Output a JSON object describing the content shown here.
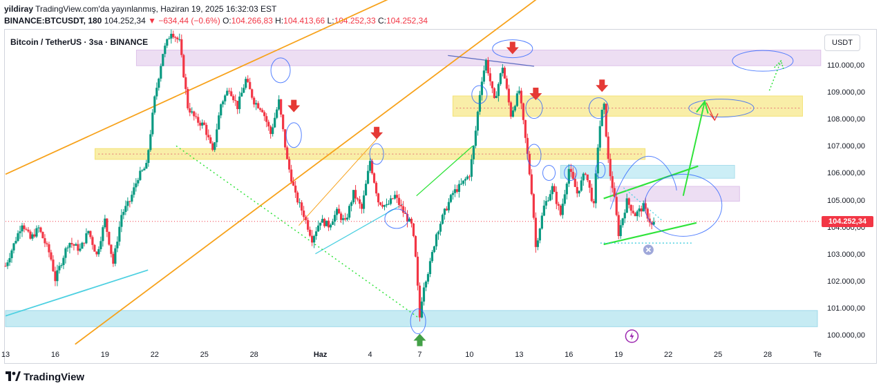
{
  "header": {
    "author": "yildiray",
    "published": "TradingView.com'da yayınlanmış, Haziran 19, 2025 16:32:03 EST",
    "symbol_line": "BINANCE:BTCUSDT, 180",
    "last": "104.252,34",
    "change": "▼ −634,44 (−0.6%)",
    "o_label": "O:",
    "o_value": "104.266,83",
    "h_label": "H:",
    "h_value": "104.413,66",
    "l_label": "L:",
    "l_value": "104.252,33",
    "c_label": "C:",
    "c_value": "104.252,34"
  },
  "legend_title": "Bitcoin / TetherUS · 3sa · BINANCE",
  "currency": "USDT",
  "last_price_label": "104.252,34",
  "footer_brand": "TradingView",
  "colors": {
    "up": "#089981",
    "down": "#f23645",
    "yellow_zone": "#f7e87c",
    "purple_zone": "#e6d3f0",
    "blue_zone": "#a9e1ef",
    "orange": "#f7a21b",
    "green": "#2fe33a",
    "cyan": "#4dd0e1",
    "circle": "#2962ff"
  },
  "chart_data": {
    "type": "candlestick",
    "title": "Bitcoin / TetherUS · 3sa · BINANCE",
    "y_axis": {
      "ticks": [
        110000,
        109000,
        108000,
        107000,
        106000,
        105000,
        104000,
        103000,
        102000,
        101000,
        100000
      ],
      "tick_labels": [
        "110.000,00",
        "109.000,00",
        "108.000,00",
        "107.000,00",
        "106.000,00",
        "105.000,00",
        "104.000,00",
        "103.000,00",
        "102.000,00",
        "101.000,00",
        "100.000,00"
      ],
      "range": [
        99600,
        111150
      ]
    },
    "x_axis": {
      "tick_labels": [
        "13",
        "16",
        "19",
        "22",
        "25",
        "28",
        "Haz",
        "4",
        "7",
        "10",
        "13",
        "16",
        "19",
        "22",
        "25",
        "28",
        "Te"
      ],
      "tick_days": [
        0,
        3,
        6,
        9,
        12,
        15,
        19,
        22,
        25,
        28,
        31,
        34,
        37,
        40,
        43,
        46,
        49
      ],
      "bold": [
        "Haz"
      ],
      "range_days": [
        0,
        49.3
      ]
    },
    "price_path": [
      [
        0,
        102600
      ],
      [
        0.5,
        103400
      ],
      [
        1,
        104200
      ],
      [
        1.5,
        103600
      ],
      [
        2,
        104000
      ],
      [
        2.7,
        103000
      ],
      [
        3,
        102100
      ],
      [
        3.8,
        103500
      ],
      [
        4.5,
        103200
      ],
      [
        5,
        103900
      ],
      [
        5.5,
        103000
      ],
      [
        6,
        104300
      ],
      [
        6.5,
        102700
      ],
      [
        7,
        104500
      ],
      [
        7.5,
        105000
      ],
      [
        8,
        105900
      ],
      [
        8.5,
        106300
      ],
      [
        9,
        108800
      ],
      [
        9.5,
        110500
      ],
      [
        10,
        111300
      ],
      [
        10.5,
        110900
      ],
      [
        11,
        108500
      ],
      [
        11.5,
        108000
      ],
      [
        12,
        107800
      ],
      [
        12.5,
        106800
      ],
      [
        13,
        108600
      ],
      [
        13.5,
        109200
      ],
      [
        14,
        108500
      ],
      [
        14.5,
        109500
      ],
      [
        15,
        108700
      ],
      [
        15.5,
        108400
      ],
      [
        16,
        107500
      ],
      [
        16.5,
        108700
      ],
      [
        17,
        106500
      ],
      [
        17.5,
        105200
      ],
      [
        18,
        104500
      ],
      [
        18.5,
        103600
      ],
      [
        19,
        104300
      ],
      [
        19.5,
        104100
      ],
      [
        20,
        104600
      ],
      [
        20.5,
        104200
      ],
      [
        21,
        105300
      ],
      [
        21.5,
        104700
      ],
      [
        22,
        106500
      ],
      [
        22.5,
        105000
      ],
      [
        23,
        104800
      ],
      [
        23.5,
        105200
      ],
      [
        24,
        104600
      ],
      [
        24.5,
        104100
      ],
      [
        24.7,
        103300
      ],
      [
        25,
        100700
      ],
      [
        25.2,
        101800
      ],
      [
        25.6,
        102600
      ],
      [
        26,
        103800
      ],
      [
        26.5,
        104600
      ],
      [
        27,
        105300
      ],
      [
        27.5,
        105600
      ],
      [
        28,
        106000
      ],
      [
        28.3,
        107200
      ],
      [
        28.7,
        109400
      ],
      [
        29,
        110200
      ],
      [
        29.5,
        108700
      ],
      [
        30,
        110000
      ],
      [
        30.5,
        108200
      ],
      [
        31,
        109100
      ],
      [
        31.5,
        106700
      ],
      [
        31.8,
        105100
      ],
      [
        32,
        103300
      ],
      [
        32.5,
        104800
      ],
      [
        33,
        105500
      ],
      [
        33.5,
        104500
      ],
      [
        34,
        106200
      ],
      [
        34.5,
        105300
      ],
      [
        35,
        106100
      ],
      [
        35.5,
        104800
      ],
      [
        35.8,
        107500
      ],
      [
        36.1,
        108700
      ],
      [
        36.4,
        106300
      ],
      [
        36.7,
        105300
      ],
      [
        37,
        103800
      ],
      [
        37.5,
        105000
      ],
      [
        38,
        104500
      ],
      [
        38.5,
        104800
      ],
      [
        39,
        104100
      ],
      [
        39.2,
        104252
      ]
    ],
    "zones": [
      {
        "name": "purple-resistance",
        "from_day": 7.9,
        "to_day": 49.2,
        "low": 110020,
        "high": 110600
      },
      {
        "name": "yellow-upper",
        "from_day": 27,
        "to_day": 48.1,
        "low": 108150,
        "high": 108900
      },
      {
        "name": "yellow-lower",
        "from_day": 5.4,
        "to_day": 38.6,
        "low": 106550,
        "high": 106950
      },
      {
        "name": "blue-upper",
        "from_day": 33.5,
        "to_day": 44,
        "low": 105850,
        "high": 106330
      },
      {
        "name": "purple-lower",
        "from_day": 36.5,
        "to_day": 44.3,
        "low": 104999,
        "high": 105550
      },
      {
        "name": "blue-support",
        "from_day": 0,
        "to_day": 49,
        "low": 100350,
        "high": 100950
      }
    ],
    "annotations": {
      "down_arrows": [
        [
          17.4,
          108450
        ],
        [
          22.4,
          107450
        ],
        [
          30.6,
          110600
        ],
        [
          32,
          108900
        ],
        [
          36,
          109200
        ]
      ],
      "up_arrows": [
        [
          25,
          99860
        ]
      ],
      "projection": "green path from ~105200 up to ~108700 near day 44, then down to ~108000",
      "icons": [
        "x-close-icon",
        "lightning-icon"
      ]
    }
  }
}
